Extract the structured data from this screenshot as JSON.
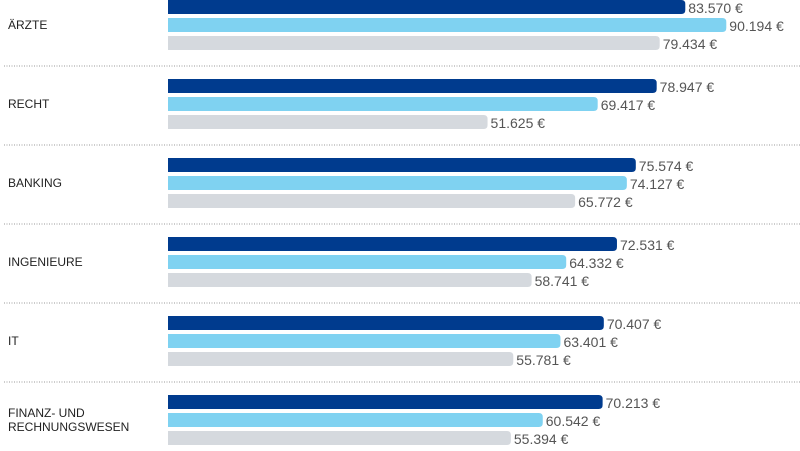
{
  "chart_data": {
    "type": "bar",
    "orientation": "horizontal",
    "categories": [
      [
        "ÄRZTE"
      ],
      [
        "RECHT"
      ],
      [
        "BANKING"
      ],
      [
        "INGENIEURE"
      ],
      [
        "IT"
      ],
      [
        "FINANZ- UND",
        "RECHNUNGSWESEN"
      ]
    ],
    "series": [
      {
        "name": "series-1",
        "color": "#003b8e",
        "values": [
          83570,
          78947,
          75574,
          72531,
          70407,
          70213
        ],
        "labels": [
          "83.570 €",
          "78.947 €",
          "75.574 €",
          "72.531 €",
          "70.407 €",
          "70.213 €"
        ]
      },
      {
        "name": "series-2",
        "color": "#7fd2f1",
        "values": [
          90194,
          69417,
          74127,
          64332,
          63401,
          60542
        ],
        "labels": [
          "90.194 €",
          "69.417 €",
          "74.127 €",
          "64.332 €",
          "63.401 €",
          "60.542 €"
        ]
      },
      {
        "name": "series-3",
        "color": "#d5d9de",
        "values": [
          79434,
          51625,
          65772,
          58741,
          55781,
          55394
        ],
        "labels": [
          "79.434 €",
          "51.625 €",
          "65.772 €",
          "58.741 €",
          "55.781 €",
          "55.394 €"
        ]
      }
    ],
    "xlim": [
      0,
      100000
    ],
    "grid": false
  }
}
